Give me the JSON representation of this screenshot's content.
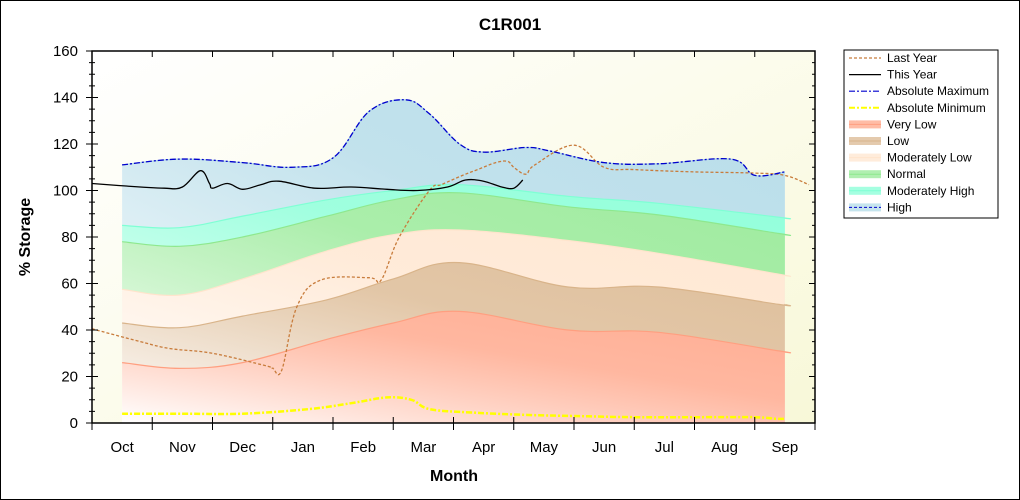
{
  "chart_data": {
    "type": "area",
    "title": "C1R001",
    "xlabel": "Month",
    "ylabel": "% Storage",
    "ylim": [
      0,
      160
    ],
    "yticks": [
      "0",
      "20",
      "40",
      "60",
      "80",
      "100",
      "120",
      "140",
      "160"
    ],
    "ytick_values": [
      0,
      20,
      40,
      60,
      80,
      100,
      120,
      140,
      160
    ],
    "x_unit": "months since Oct 1",
    "xlim": [
      0,
      12
    ],
    "categories": [
      "Oct",
      "Nov",
      "Dec",
      "Jan",
      "Feb",
      "Mar",
      "Apr",
      "May",
      "Jun",
      "Jul",
      "Aug",
      "Sep"
    ],
    "grid": false,
    "legend_position": "right",
    "bands": [
      {
        "name": "Very Low",
        "color": "#ff9f80",
        "x": [
          0.5,
          1.45,
          2.5,
          3.9,
          5.0,
          6.1,
          7.9,
          9.4,
          11.4,
          11.5
        ],
        "upper": [
          26,
          23.5,
          26,
          36,
          43,
          48,
          40,
          39,
          31,
          30.5
        ]
      },
      {
        "name": "Low",
        "color": "#d9b48a",
        "x": [
          0.5,
          1.45,
          2.5,
          3.9,
          5.0,
          6.1,
          7.9,
          9.4,
          11.4,
          11.5
        ],
        "upper": [
          43,
          41,
          46,
          53,
          62,
          69,
          58.5,
          58.5,
          51,
          51
        ]
      },
      {
        "name": "Moderately Low",
        "color": "#ffe4cc",
        "x": [
          0.5,
          1.45,
          2.5,
          3.9,
          5.0,
          6.1,
          7.9,
          9.4,
          11.4,
          11.5
        ],
        "upper": [
          57.5,
          55,
          62,
          74,
          81,
          83,
          78.5,
          73,
          64,
          63.5
        ]
      },
      {
        "name": "Normal",
        "color": "#8ee88e",
        "x": [
          0.5,
          1.45,
          2.5,
          3.9,
          5.0,
          6.1,
          7.9,
          9.4,
          11.4,
          11.5
        ],
        "upper": [
          78,
          76,
          80,
          89,
          96,
          99,
          93,
          89.5,
          81.5,
          81
        ]
      },
      {
        "name": "Moderately High",
        "color": "#7fffd4",
        "x": [
          0.5,
          1.45,
          2.5,
          3.9,
          5.0,
          6.1,
          7.9,
          9.4,
          11.4,
          11.5
        ],
        "upper": [
          85,
          84,
          89,
          96,
          100,
          102.5,
          97.5,
          94.5,
          88.5,
          88
        ]
      },
      {
        "name": "High",
        "color": "#add8e6",
        "x": [
          0.5,
          1.45,
          2.5,
          3.3,
          4.0,
          4.6,
          5.2,
          5.6,
          6.1,
          6.5,
          7.2,
          7.6,
          8.5,
          9.4,
          10.6,
          11.0,
          11.5
        ],
        "upper": [
          111,
          113.5,
          112,
          110,
          114,
          134,
          139,
          133,
          120,
          116.5,
          118.5,
          117,
          112,
          111.5,
          113.5,
          106.5,
          108
        ]
      }
    ],
    "series": [
      {
        "name": "Last Year",
        "color": "#c87c3c",
        "style": "dashed",
        "x": [
          0.0,
          0.8,
          1.3,
          2.0,
          2.9,
          3.0,
          3.15,
          3.4,
          3.8,
          4.6,
          4.8,
          5.1,
          5.6,
          5.8,
          6.15,
          6.4,
          6.7,
          6.9,
          7.0,
          7.2,
          7.35,
          8.0,
          8.5,
          9.0,
          10.0,
          11.0,
          11.5,
          11.9
        ],
        "y": [
          40.5,
          35,
          32,
          30,
          24.5,
          23.5,
          22.8,
          50,
          61.5,
          62.5,
          61.5,
          80,
          100,
          102.5,
          106.5,
          109,
          112,
          112.5,
          110,
          107,
          111,
          119.5,
          110,
          109,
          108,
          107.5,
          106.5,
          102.5
        ]
      },
      {
        "name": "This Year",
        "color": "#000000",
        "style": "solid",
        "x": [
          0.0,
          0.8,
          1.2,
          1.5,
          1.8,
          1.95,
          2.0,
          2.25,
          2.5,
          2.8,
          3.1,
          3.7,
          4.3,
          4.9,
          5.4,
          5.9,
          6.2,
          6.5,
          6.8,
          7.0,
          7.15
        ],
        "y": [
          103,
          101.5,
          101,
          101.5,
          108.5,
          103,
          101,
          103,
          100.5,
          102.5,
          104,
          101,
          101.5,
          100.5,
          100,
          101.5,
          104.5,
          104,
          101.5,
          101,
          104.5
        ]
      },
      {
        "name": "Absolute Maximum",
        "color": "#0000cd",
        "style": "dashdot",
        "x": [
          0.5,
          1.45,
          2.5,
          3.3,
          4.0,
          4.6,
          5.2,
          5.6,
          6.1,
          6.5,
          7.2,
          7.6,
          8.5,
          9.4,
          10.6,
          11.0,
          11.5
        ],
        "y": [
          111,
          113.5,
          112,
          110,
          114,
          134,
          139,
          133,
          120,
          116.5,
          118.5,
          117,
          112,
          111.5,
          113.5,
          106.5,
          108
        ]
      },
      {
        "name": "Absolute Minimum",
        "color": "#ffff00",
        "style": "dashdot",
        "x": [
          0.5,
          1.5,
          2.5,
          3.6,
          4.3,
          4.9,
          5.3,
          5.6,
          6.3,
          7.2,
          8.0,
          9.0,
          10.0,
          11.0,
          11.35,
          11.5
        ],
        "y": [
          4,
          4,
          4,
          6,
          8.5,
          11,
          10,
          6,
          4.5,
          3.5,
          3,
          2.5,
          2.5,
          2.5,
          1.8,
          1.8
        ]
      }
    ],
    "legend": [
      {
        "name": "Last Year",
        "kind": "line",
        "color": "#c87c3c",
        "style": "dashed"
      },
      {
        "name": "This Year",
        "kind": "line",
        "color": "#000000",
        "style": "solid"
      },
      {
        "name": "Absolute Maximum",
        "kind": "line",
        "color": "#0000cd",
        "style": "dashdot"
      },
      {
        "name": "Absolute Minimum",
        "kind": "line",
        "color": "#ffff00",
        "style": "dashdot"
      },
      {
        "name": "Very Low",
        "kind": "band",
        "color": "#ff9f80"
      },
      {
        "name": "Low",
        "kind": "band",
        "color": "#d9b48a"
      },
      {
        "name": "Moderately Low",
        "kind": "band",
        "color": "#ffe4cc"
      },
      {
        "name": "Normal",
        "kind": "band",
        "color": "#8ee88e"
      },
      {
        "name": "Moderately High",
        "kind": "band",
        "color": "#7fffd4"
      },
      {
        "name": "High",
        "kind": "band",
        "color": "#add8e6",
        "edge": "#0000cd"
      }
    ]
  }
}
